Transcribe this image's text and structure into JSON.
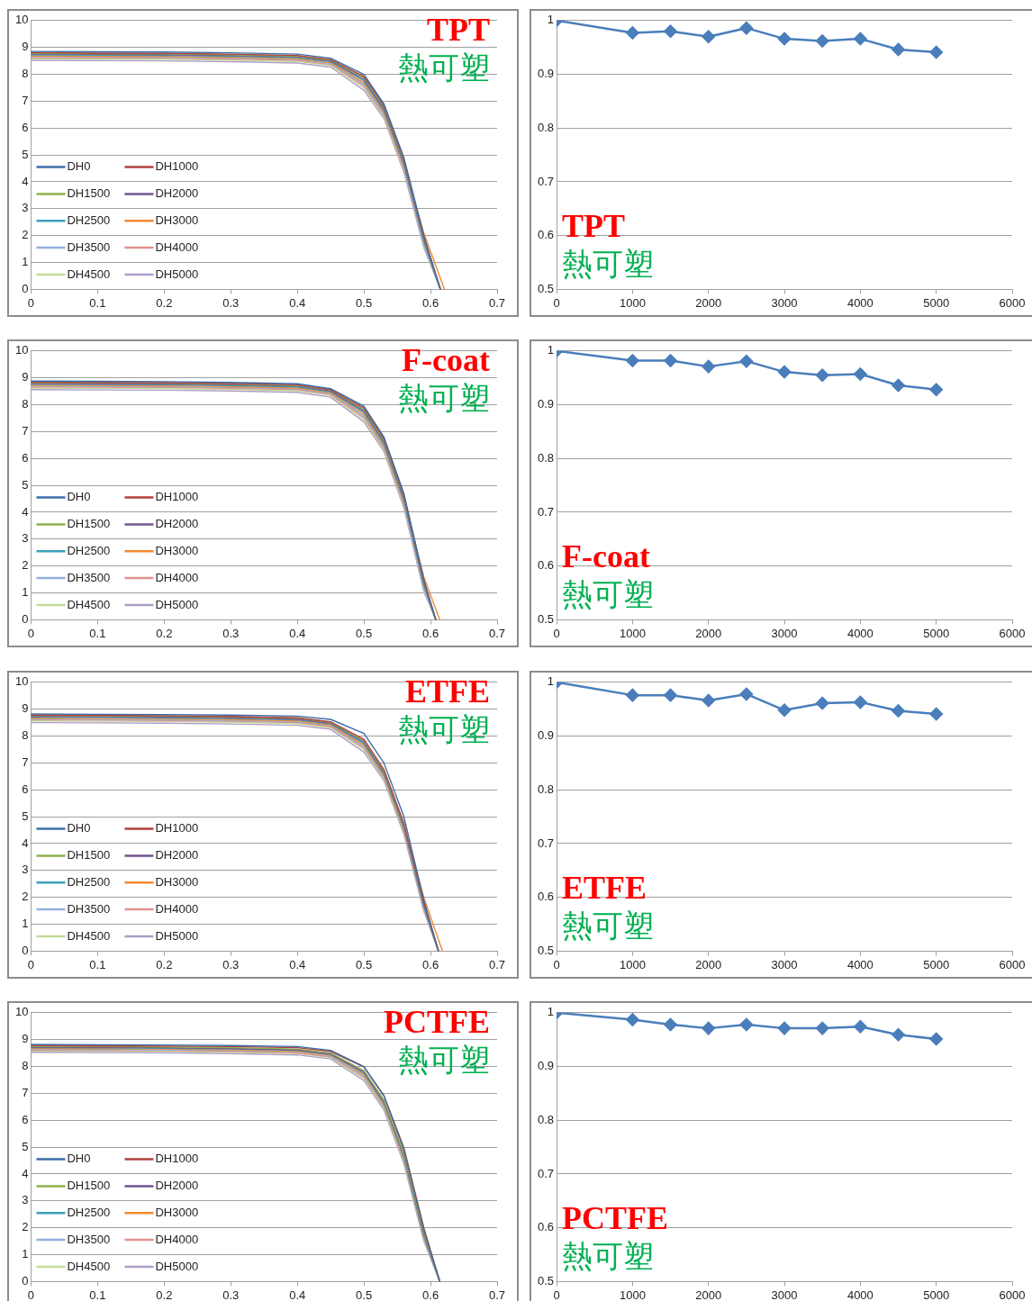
{
  "chart_data": [
    {
      "type": "line",
      "x": [
        0,
        0.1,
        0.2,
        0.3,
        0.4,
        0.45,
        0.5,
        0.53,
        0.56,
        0.59,
        0.615
      ],
      "xlim": [
        0,
        0.7
      ],
      "xticks": [
        0,
        0.1,
        0.2,
        0.3,
        0.4,
        0.5,
        0.6,
        0.7
      ],
      "ylim": [
        0,
        10
      ],
      "yticks": [
        0,
        1,
        2,
        3,
        4,
        5,
        6,
        7,
        8,
        9,
        10
      ],
      "grid": "y",
      "legend": "bottom left",
      "marker": "none",
      "line_style": "solid",
      "annotations": [
        "TPT",
        "熱可塑"
      ],
      "series": [
        {
          "name": "DH0",
          "color": "#3d6da8",
          "values": [
            8.85,
            8.84,
            8.83,
            8.8,
            8.75,
            8.6,
            8.0,
            6.9,
            4.9,
            2.0,
            0
          ]
        },
        {
          "name": "DH1000",
          "color": "#b0413e",
          "values": [
            8.8,
            8.79,
            8.78,
            8.75,
            8.7,
            8.55,
            7.92,
            6.84,
            4.84,
            1.95,
            0
          ]
        },
        {
          "name": "DH1500",
          "color": "#8eb04d",
          "values": [
            8.78,
            8.77,
            8.76,
            8.73,
            8.68,
            8.53,
            7.87,
            6.78,
            4.78,
            1.9,
            0
          ]
        },
        {
          "name": "DH2000",
          "color": "#70548f",
          "values": [
            8.75,
            8.74,
            8.73,
            8.7,
            8.65,
            8.5,
            7.81,
            6.72,
            4.72,
            1.85,
            0
          ]
        },
        {
          "name": "DH2500",
          "color": "#3d9fb8",
          "values": [
            8.72,
            8.71,
            8.7,
            8.67,
            8.62,
            8.47,
            7.75,
            6.66,
            4.66,
            1.8,
            0
          ]
        },
        {
          "name": "DH3000",
          "color": "#f38a32",
          "x": [
            0,
            0.1,
            0.2,
            0.3,
            0.4,
            0.45,
            0.5,
            0.53,
            0.56,
            0.59,
            0.621
          ],
          "values": [
            8.68,
            8.67,
            8.66,
            8.63,
            8.58,
            8.43,
            7.68,
            6.6,
            4.6,
            2.1,
            0
          ]
        },
        {
          "name": "DH3500",
          "color": "#92afdd",
          "values": [
            8.65,
            8.64,
            8.63,
            8.6,
            8.55,
            8.4,
            7.62,
            6.54,
            4.54,
            1.7,
            0
          ]
        },
        {
          "name": "DH4000",
          "color": "#e0928f",
          "values": [
            8.62,
            8.61,
            8.6,
            8.57,
            8.52,
            8.37,
            7.56,
            6.48,
            4.48,
            1.65,
            0
          ]
        },
        {
          "name": "DH4500",
          "color": "#c2dc98",
          "values": [
            8.58,
            8.57,
            8.56,
            8.53,
            8.48,
            8.33,
            7.49,
            6.42,
            4.42,
            1.6,
            0
          ]
        },
        {
          "name": "DH5000",
          "color": "#ad9dc8",
          "values": [
            8.52,
            8.51,
            8.5,
            8.47,
            8.42,
            8.27,
            7.4,
            6.36,
            4.36,
            1.55,
            0
          ]
        }
      ]
    },
    {
      "type": "line",
      "x": [
        0,
        1000,
        1500,
        2000,
        2500,
        3000,
        3500,
        4000,
        4500,
        5000
      ],
      "xlim": [
        0,
        6000
      ],
      "xticks": [
        0,
        1000,
        2000,
        3000,
        4000,
        5000,
        6000
      ],
      "ylim": [
        0.5,
        1
      ],
      "yticks": [
        0.5,
        0.6,
        0.7,
        0.8,
        0.9,
        1
      ],
      "grid": "y",
      "marker": "diamond",
      "line_style": "solid",
      "annotations": [
        "TPT",
        "熱可塑"
      ],
      "series": [
        {
          "color": "#4a7ebb",
          "values": [
            1,
            0.977,
            0.98,
            0.97,
            0.986,
            0.966,
            0.962,
            0.966,
            0.946,
            0.941
          ]
        }
      ]
    },
    {
      "type": "line",
      "x": [
        0,
        0.1,
        0.2,
        0.3,
        0.4,
        0.45,
        0.5,
        0.53,
        0.56,
        0.59,
        0.608
      ],
      "xlim": [
        0,
        0.7
      ],
      "xticks": [
        0,
        0.1,
        0.2,
        0.3,
        0.4,
        0.5,
        0.6,
        0.7
      ],
      "ylim": [
        0,
        10
      ],
      "yticks": [
        0,
        1,
        2,
        3,
        4,
        5,
        6,
        7,
        8,
        9,
        10
      ],
      "grid": "y",
      "legend": "bottom left",
      "marker": "none",
      "line_style": "solid",
      "annotations": [
        "F-coat",
        "熱可塑"
      ],
      "series": [
        {
          "name": "DH0",
          "color": "#3d6da8",
          "values": [
            8.88,
            8.87,
            8.86,
            8.83,
            8.78,
            8.6,
            7.95,
            6.8,
            4.7,
            1.5,
            0
          ]
        },
        {
          "name": "DH1000",
          "color": "#b0413e",
          "values": [
            8.84,
            8.83,
            8.82,
            8.79,
            8.74,
            8.56,
            7.88,
            6.74,
            4.64,
            1.45,
            0
          ]
        },
        {
          "name": "DH1500",
          "color": "#8eb04d",
          "values": [
            8.82,
            8.81,
            8.8,
            8.77,
            8.72,
            8.54,
            7.83,
            6.68,
            4.58,
            1.4,
            0
          ]
        },
        {
          "name": "DH2000",
          "color": "#70548f",
          "values": [
            8.79,
            8.78,
            8.77,
            8.74,
            8.69,
            8.51,
            7.77,
            6.62,
            4.52,
            1.35,
            0
          ]
        },
        {
          "name": "DH2500",
          "color": "#3d9fb8",
          "values": [
            8.76,
            8.75,
            8.74,
            8.71,
            8.66,
            8.48,
            7.71,
            6.56,
            4.46,
            1.3,
            0
          ]
        },
        {
          "name": "DH3000",
          "color": "#f38a32",
          "x": [
            0,
            0.1,
            0.2,
            0.3,
            0.4,
            0.45,
            0.5,
            0.53,
            0.56,
            0.59,
            0.614
          ],
          "values": [
            8.72,
            8.71,
            8.7,
            8.67,
            8.62,
            8.44,
            7.64,
            6.5,
            4.4,
            1.6,
            0
          ]
        },
        {
          "name": "DH3500",
          "color": "#92afdd",
          "values": [
            8.69,
            8.68,
            8.67,
            8.64,
            8.59,
            8.41,
            7.58,
            6.44,
            4.34,
            1.2,
            0
          ]
        },
        {
          "name": "DH4000",
          "color": "#e0928f",
          "values": [
            8.66,
            8.65,
            8.64,
            8.61,
            8.56,
            8.38,
            7.52,
            6.38,
            4.28,
            1.15,
            0
          ]
        },
        {
          "name": "DH4500",
          "color": "#c2dc98",
          "values": [
            8.62,
            8.61,
            8.6,
            8.57,
            8.52,
            8.34,
            7.45,
            6.32,
            4.22,
            1.1,
            0
          ]
        },
        {
          "name": "DH5000",
          "color": "#ad9dc8",
          "values": [
            8.56,
            8.55,
            8.54,
            8.51,
            8.46,
            8.28,
            7.36,
            6.26,
            4.16,
            1.05,
            0
          ]
        }
      ]
    },
    {
      "type": "line",
      "x": [
        0,
        1000,
        1500,
        2000,
        2500,
        3000,
        3500,
        4000,
        4500,
        5000
      ],
      "xlim": [
        0,
        6000
      ],
      "xticks": [
        0,
        1000,
        2000,
        3000,
        4000,
        5000,
        6000
      ],
      "ylim": [
        0.5,
        1
      ],
      "yticks": [
        0.5,
        0.6,
        0.7,
        0.8,
        0.9,
        1
      ],
      "grid": "y",
      "marker": "diamond",
      "line_style": "solid",
      "annotations": [
        "F-coat",
        "熱可塑"
      ],
      "series": [
        {
          "color": "#4a7ebb",
          "values": [
            1,
            0.982,
            0.982,
            0.971,
            0.981,
            0.961,
            0.955,
            0.957,
            0.936,
            0.928
          ]
        }
      ]
    },
    {
      "type": "line",
      "x": [
        0,
        0.1,
        0.2,
        0.3,
        0.4,
        0.45,
        0.5,
        0.53,
        0.56,
        0.59,
        0.612
      ],
      "xlim": [
        0,
        0.7
      ],
      "xticks": [
        0,
        0.1,
        0.2,
        0.3,
        0.4,
        0.5,
        0.6,
        0.7
      ],
      "ylim": [
        0,
        10
      ],
      "yticks": [
        0,
        1,
        2,
        3,
        4,
        5,
        6,
        7,
        8,
        9,
        10
      ],
      "grid": "y",
      "legend": "bottom left",
      "marker": "none",
      "line_style": "solid",
      "annotations": [
        "ETFE",
        "熱可塑"
      ],
      "series": [
        {
          "name": "DH0",
          "color": "#3d6da8",
          "values": [
            8.82,
            8.81,
            8.8,
            8.78,
            8.74,
            8.62,
            8.1,
            7.0,
            5.0,
            1.9,
            0
          ]
        },
        {
          "name": "DH1000",
          "color": "#b0413e",
          "values": [
            8.78,
            8.77,
            8.76,
            8.73,
            8.68,
            8.53,
            7.88,
            6.76,
            4.76,
            1.8,
            0
          ]
        },
        {
          "name": "DH1500",
          "color": "#8eb04d",
          "values": [
            8.76,
            8.75,
            8.74,
            8.71,
            8.66,
            8.51,
            7.83,
            6.7,
            4.7,
            1.76,
            0
          ]
        },
        {
          "name": "DH2000",
          "color": "#70548f",
          "values": [
            8.73,
            8.72,
            8.71,
            8.68,
            8.63,
            8.48,
            7.78,
            6.65,
            4.65,
            1.72,
            0
          ]
        },
        {
          "name": "DH2500",
          "color": "#3d9fb8",
          "values": [
            8.7,
            8.69,
            8.68,
            8.65,
            8.6,
            8.45,
            7.72,
            6.6,
            4.6,
            1.68,
            0
          ]
        },
        {
          "name": "DH3000",
          "color": "#f38a32",
          "x": [
            0,
            0.1,
            0.2,
            0.3,
            0.4,
            0.45,
            0.5,
            0.53,
            0.56,
            0.59,
            0.618
          ],
          "values": [
            8.66,
            8.65,
            8.64,
            8.61,
            8.56,
            8.41,
            7.66,
            6.55,
            4.55,
            2.0,
            0
          ]
        },
        {
          "name": "DH3500",
          "color": "#92afdd",
          "values": [
            8.63,
            8.62,
            8.61,
            8.58,
            8.53,
            8.38,
            7.6,
            6.5,
            4.5,
            1.6,
            0
          ]
        },
        {
          "name": "DH4000",
          "color": "#e0928f",
          "values": [
            8.6,
            8.59,
            8.58,
            8.55,
            8.5,
            8.35,
            7.55,
            6.45,
            4.45,
            1.56,
            0
          ]
        },
        {
          "name": "DH4500",
          "color": "#c2dc98",
          "values": [
            8.56,
            8.55,
            8.54,
            8.51,
            8.46,
            8.31,
            7.49,
            6.4,
            4.4,
            1.52,
            0
          ]
        },
        {
          "name": "DH5000",
          "color": "#ad9dc8",
          "values": [
            8.5,
            8.49,
            8.48,
            8.45,
            8.4,
            8.25,
            7.4,
            6.34,
            4.34,
            1.48,
            0
          ]
        }
      ]
    },
    {
      "type": "line",
      "x": [
        0,
        1000,
        1500,
        2000,
        2500,
        3000,
        3500,
        4000,
        4500,
        5000
      ],
      "xlim": [
        0,
        6000
      ],
      "xticks": [
        0,
        1000,
        2000,
        3000,
        4000,
        5000,
        6000
      ],
      "ylim": [
        0.5,
        1
      ],
      "yticks": [
        0.5,
        0.6,
        0.7,
        0.8,
        0.9,
        1
      ],
      "grid": "y",
      "marker": "diamond",
      "line_style": "solid",
      "annotations": [
        "ETFE",
        "熱可塑"
      ],
      "series": [
        {
          "color": "#4a7ebb",
          "values": [
            1,
            0.976,
            0.976,
            0.966,
            0.978,
            0.948,
            0.961,
            0.963,
            0.947,
            0.941
          ]
        }
      ]
    },
    {
      "type": "line",
      "x": [
        0,
        0.1,
        0.2,
        0.3,
        0.4,
        0.45,
        0.5,
        0.53,
        0.56,
        0.59,
        0.614
      ],
      "xlim": [
        0,
        0.7
      ],
      "xticks": [
        0,
        0.1,
        0.2,
        0.3,
        0.4,
        0.5,
        0.6,
        0.7
      ],
      "ylim": [
        0,
        10
      ],
      "yticks": [
        0,
        1,
        2,
        3,
        4,
        5,
        6,
        7,
        8,
        9,
        10
      ],
      "grid": "y",
      "legend": "bottom left",
      "marker": "none",
      "line_style": "solid",
      "annotations": [
        "PCTFE",
        "熱可塑"
      ],
      "series": [
        {
          "name": "DH0",
          "color": "#3d6da8",
          "values": [
            8.82,
            8.81,
            8.8,
            8.78,
            8.74,
            8.6,
            8.0,
            6.9,
            4.9,
            1.9,
            0
          ]
        },
        {
          "name": "DH1000",
          "color": "#b0413e",
          "values": [
            8.78,
            8.77,
            8.76,
            8.74,
            8.7,
            8.56,
            7.98,
            6.92,
            4.98,
            2.0,
            0
          ]
        },
        {
          "name": "DH1500",
          "color": "#8eb04d",
          "values": [
            8.75,
            8.74,
            8.73,
            8.7,
            8.65,
            8.5,
            7.85,
            6.75,
            4.75,
            1.8,
            0
          ]
        },
        {
          "name": "DH2000",
          "color": "#70548f",
          "values": [
            8.72,
            8.71,
            8.7,
            8.67,
            8.62,
            8.47,
            7.8,
            6.7,
            4.7,
            1.76,
            0
          ]
        },
        {
          "name": "DH2500",
          "color": "#3d9fb8",
          "values": [
            8.7,
            8.69,
            8.68,
            8.65,
            8.6,
            8.45,
            7.76,
            6.66,
            4.66,
            1.72,
            0
          ]
        },
        {
          "name": "DH3000",
          "color": "#f38a32",
          "values": [
            8.67,
            8.66,
            8.65,
            8.62,
            8.57,
            8.42,
            7.71,
            6.6,
            4.6,
            1.68,
            0
          ]
        },
        {
          "name": "DH3500",
          "color": "#92afdd",
          "values": [
            8.64,
            8.63,
            8.62,
            8.59,
            8.54,
            8.39,
            7.66,
            6.55,
            4.55,
            1.64,
            0
          ]
        },
        {
          "name": "DH4000",
          "color": "#e0928f",
          "values": [
            8.61,
            8.6,
            8.59,
            8.56,
            8.51,
            8.36,
            7.6,
            6.5,
            4.5,
            1.6,
            0
          ]
        },
        {
          "name": "DH4500",
          "color": "#c2dc98",
          "values": [
            8.58,
            8.57,
            8.56,
            8.53,
            8.48,
            8.33,
            7.55,
            6.45,
            4.45,
            1.56,
            0
          ]
        },
        {
          "name": "DH5000",
          "color": "#ad9dc8",
          "values": [
            8.53,
            8.52,
            8.51,
            8.48,
            8.43,
            8.28,
            7.48,
            6.38,
            4.38,
            1.5,
            0
          ]
        }
      ]
    },
    {
      "type": "line",
      "x": [
        0,
        1000,
        1500,
        2000,
        2500,
        3000,
        3500,
        4000,
        4500,
        5000
      ],
      "xlim": [
        0,
        6000
      ],
      "xticks": [
        0,
        1000,
        2000,
        3000,
        4000,
        5000,
        6000
      ],
      "ylim": [
        0.5,
        1
      ],
      "yticks": [
        0.5,
        0.6,
        0.7,
        0.8,
        0.9,
        1
      ],
      "grid": "y",
      "marker": "diamond",
      "line_style": "solid",
      "annotations": [
        "PCTFE",
        "熱可塑"
      ],
      "series": [
        {
          "color": "#4a7ebb",
          "values": [
            1,
            0.987,
            0.978,
            0.971,
            0.978,
            0.971,
            0.971,
            0.974,
            0.959,
            0.951
          ]
        }
      ]
    }
  ]
}
